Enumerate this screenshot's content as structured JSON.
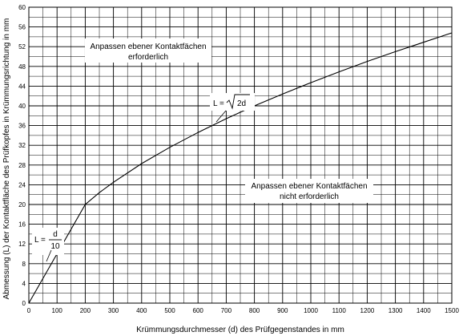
{
  "chart_data": {
    "type": "line",
    "xlabel": "Krümmungsdurchmesser (d) des Prüfgegenstandes in mm",
    "ylabel": "Abmessung (L) der Kontaktfläche des Prüfkopfes in Krümmungsrichtung in mm",
    "xlim": [
      0,
      1500
    ],
    "ylim": [
      0,
      60
    ],
    "x_ticks": [
      "0",
      "100",
      "200",
      "300",
      "400",
      "500",
      "600",
      "700",
      "800",
      "900",
      "1000",
      "1100",
      "1200",
      "1300",
      "1400",
      "1500"
    ],
    "y_ticks": [
      "0",
      "4",
      "8",
      "12",
      "16",
      "20",
      "24",
      "28",
      "32",
      "36",
      "40",
      "44",
      "48",
      "52",
      "56",
      "60"
    ],
    "grid": true,
    "series": [
      {
        "color": "#000000",
        "x": [
          0,
          200
        ],
        "y": [
          0,
          20
        ]
      },
      {
        "color": "#000000",
        "x": [
          200,
          250,
          300,
          400,
          500,
          600,
          700,
          800,
          900,
          1000,
          1100,
          1200,
          1300,
          1400,
          1500
        ],
        "y": [
          20.0,
          22.4,
          24.5,
          28.3,
          31.6,
          34.6,
          37.4,
          40.0,
          42.4,
          44.7,
          46.9,
          49.0,
          51.0,
          52.9,
          54.8
        ]
      }
    ],
    "annotations": {
      "upper": [
        "Anpassen ebener Kontaktfächen",
        "erforderlich"
      ],
      "lower": [
        "Anpassen ebener Kontaktfächen",
        "nicht erforderlich"
      ],
      "formula_sqrt": {
        "lhs": "L =",
        "rad": "2d"
      },
      "formula_linear": {
        "lhs": "L =",
        "num": "d",
        "den": "10"
      }
    }
  }
}
